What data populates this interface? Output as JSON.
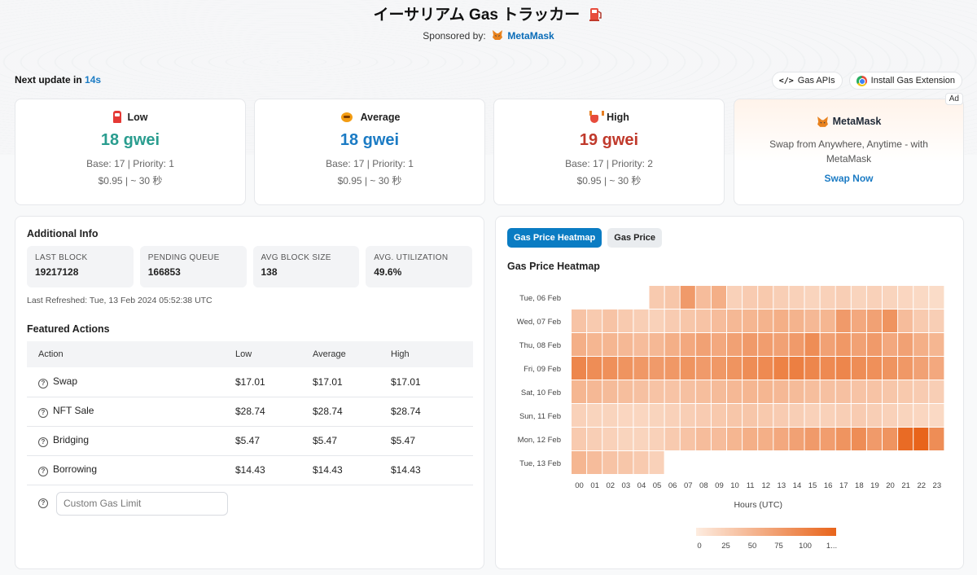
{
  "header": {
    "title": "イーサリアム Gas トラッカー",
    "sponsor_label": "Sponsored by:",
    "sponsor_name": "MetaMask"
  },
  "next_update": {
    "label": "Next update in",
    "seconds": "14s"
  },
  "top_buttons": {
    "gas_apis": "Gas APIs",
    "gas_apis_glyph": "</>",
    "install_ext": "Install Gas Extension"
  },
  "gas": [
    {
      "label": "Low",
      "gwei": "18 gwei",
      "base": "Base: 17 | Priority: 1",
      "price": "$0.95 | ~ 30 秒"
    },
    {
      "label": "Average",
      "gwei": "18 gwei",
      "base": "Base: 17 | Priority: 1",
      "price": "$0.95 | ~ 30 秒"
    },
    {
      "label": "High",
      "gwei": "19 gwei",
      "base": "Base: 17 | Priority: 2",
      "price": "$0.95 | ~ 30 秒"
    }
  ],
  "ad": {
    "tag": "Ad",
    "brand": "MetaMask",
    "message": "Swap from Anywhere, Anytime - with MetaMask",
    "cta": "Swap Now"
  },
  "info": {
    "title": "Additional Info",
    "stats": [
      {
        "label": "LAST BLOCK",
        "value": "19217128"
      },
      {
        "label": "PENDING QUEUE",
        "value": "166853"
      },
      {
        "label": "AVG BLOCK SIZE",
        "value": "138"
      },
      {
        "label": "AVG. UTILIZATION",
        "value": "49.6%"
      }
    ],
    "refreshed": "Last Refreshed: Tue, 13 Feb 2024 05:52:38 UTC",
    "featured_title": "Featured Actions",
    "columns": [
      "Action",
      "Low",
      "Average",
      "High"
    ],
    "rows": [
      {
        "action": "Swap",
        "low": "$17.01",
        "avg": "$17.01",
        "high": "$17.01"
      },
      {
        "action": "NFT Sale",
        "low": "$28.74",
        "avg": "$28.74",
        "high": "$28.74"
      },
      {
        "action": "Bridging",
        "low": "$5.47",
        "avg": "$5.47",
        "high": "$5.47"
      },
      {
        "action": "Borrowing",
        "low": "$14.43",
        "avg": "$14.43",
        "high": "$14.43"
      }
    ],
    "custom_placeholder": "Custom Gas Limit",
    "help_glyph": "?"
  },
  "heatmap_panel": {
    "tabs": [
      "Gas Price Heatmap",
      "Gas Price"
    ],
    "title": "Gas Price Heatmap"
  },
  "colors": {
    "heat_low": "#fde9dc",
    "heat_high": "#e8641b",
    "accent": "#0a7cc3"
  },
  "chart_data": {
    "type": "heatmap",
    "title": "Gas Price Heatmap",
    "xlabel": "Hours (UTC)",
    "ylabel": "",
    "x": [
      "00",
      "01",
      "02",
      "03",
      "04",
      "05",
      "06",
      "07",
      "08",
      "09",
      "10",
      "11",
      "12",
      "13",
      "14",
      "15",
      "16",
      "17",
      "18",
      "19",
      "20",
      "21",
      "22",
      "23"
    ],
    "y": [
      "Tue, 06 Feb",
      "Wed, 07 Feb",
      "Thu, 08 Feb",
      "Fri, 09 Feb",
      "Sat, 10 Feb",
      "Sun, 11 Feb",
      "Mon, 12 Feb",
      "Tue, 13 Feb"
    ],
    "values": [
      [
        null,
        null,
        null,
        null,
        null,
        25,
        28,
        60,
        35,
        45,
        20,
        24,
        26,
        22,
        20,
        18,
        20,
        22,
        18,
        20,
        18,
        16,
        14,
        12
      ],
      [
        30,
        25,
        30,
        25,
        22,
        20,
        24,
        28,
        30,
        35,
        38,
        40,
        42,
        45,
        42,
        38,
        40,
        60,
        50,
        55,
        65,
        35,
        25,
        22
      ],
      [
        45,
        40,
        40,
        38,
        35,
        38,
        45,
        50,
        55,
        50,
        55,
        60,
        58,
        55,
        60,
        70,
        55,
        62,
        55,
        60,
        50,
        55,
        45,
        40
      ],
      [
        75,
        70,
        68,
        65,
        62,
        60,
        62,
        65,
        60,
        62,
        65,
        70,
        72,
        78,
        80,
        75,
        72,
        75,
        70,
        68,
        65,
        62,
        55,
        50
      ],
      [
        40,
        38,
        36,
        34,
        32,
        30,
        30,
        32,
        34,
        36,
        38,
        40,
        40,
        38,
        36,
        34,
        32,
        32,
        30,
        30,
        28,
        26,
        24,
        22
      ],
      [
        20,
        18,
        18,
        16,
        16,
        18,
        20,
        22,
        24,
        26,
        28,
        28,
        26,
        24,
        22,
        20,
        20,
        22,
        24,
        22,
        20,
        18,
        16,
        14
      ],
      [
        25,
        22,
        20,
        18,
        18,
        20,
        25,
        30,
        35,
        35,
        40,
        45,
        45,
        50,
        55,
        60,
        58,
        65,
        70,
        60,
        65,
        95,
        100,
        70
      ],
      [
        40,
        35,
        30,
        28,
        25,
        20,
        null,
        null,
        null,
        null,
        null,
        null,
        null,
        null,
        null,
        null,
        null,
        null,
        null,
        null,
        null,
        null,
        null,
        null
      ]
    ],
    "scale_ticks": [
      "0",
      "25",
      "50",
      "75",
      "100",
      "1..."
    ],
    "range": [
      0,
      100
    ]
  }
}
